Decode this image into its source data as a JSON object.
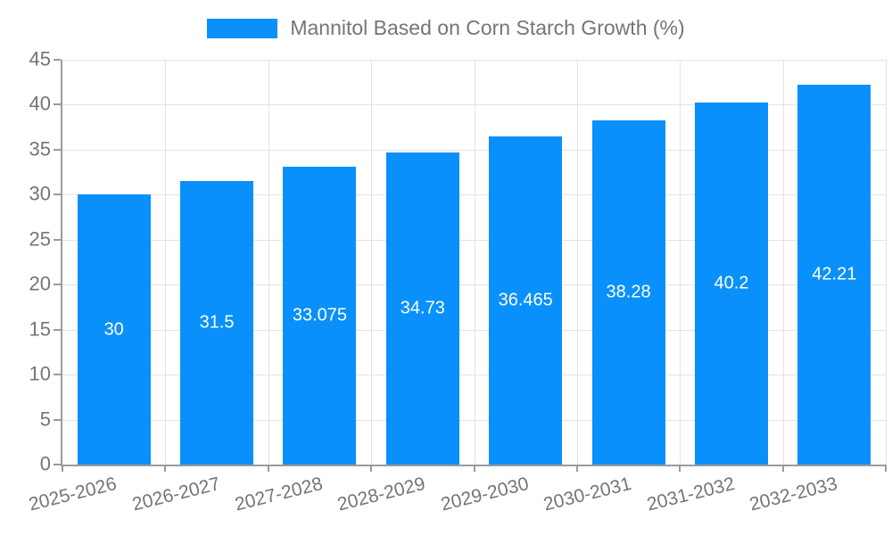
{
  "chart_data": {
    "type": "bar",
    "legend": "Mannitol Based on Corn Starch Growth (%)",
    "legend_position": "top-center",
    "categories": [
      "2025-2026",
      "2026-2027",
      "2027-2028",
      "2028-2029",
      "2029-2030",
      "2030-2031",
      "2031-2032",
      "2032-2033"
    ],
    "values": [
      30,
      31.5,
      33.075,
      34.73,
      36.465,
      38.28,
      40.2,
      42.21
    ],
    "value_labels": [
      "30",
      "31.5",
      "33.075",
      "34.73",
      "36.465",
      "38.28",
      "40.2",
      "42.21"
    ],
    "xlabel": "",
    "ylabel": "",
    "ylim": [
      0,
      45
    ],
    "yticks": [
      0,
      5,
      10,
      15,
      20,
      25,
      30,
      35,
      40,
      45
    ],
    "grid": true,
    "colors": {
      "bar": "#0a90fa",
      "bar_label": "#ffffff",
      "axis": "#9b9b9b",
      "grid": "#e3e3e3",
      "text": "#757575",
      "background": "#ffffff"
    }
  }
}
